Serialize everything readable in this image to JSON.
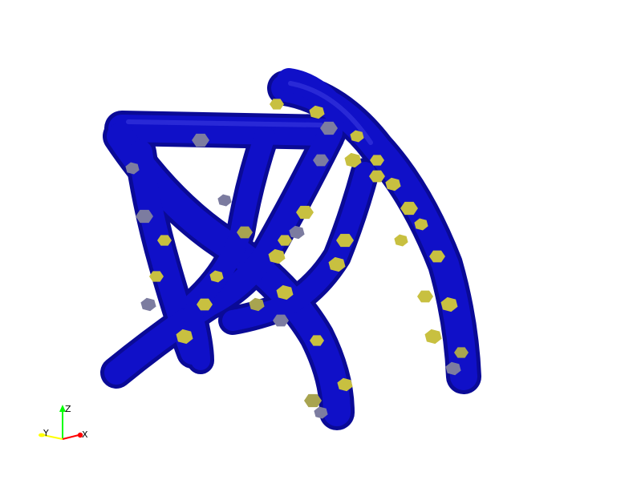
{
  "viewport": {
    "background": "#ffffff"
  },
  "model": {
    "base_color": "#1010c8",
    "shade_color": "#0a0a96",
    "highlight_color": "#3a3ae0",
    "patch_colors": [
      "#c8c040",
      "#7c7ca0",
      "#a8a450"
    ]
  },
  "orientation_axes": {
    "x_label": "X",
    "y_label": "Y",
    "z_label": "Z",
    "x_color": "#ff0000",
    "y_color": "#ffff00",
    "z_color": "#00ff00"
  }
}
